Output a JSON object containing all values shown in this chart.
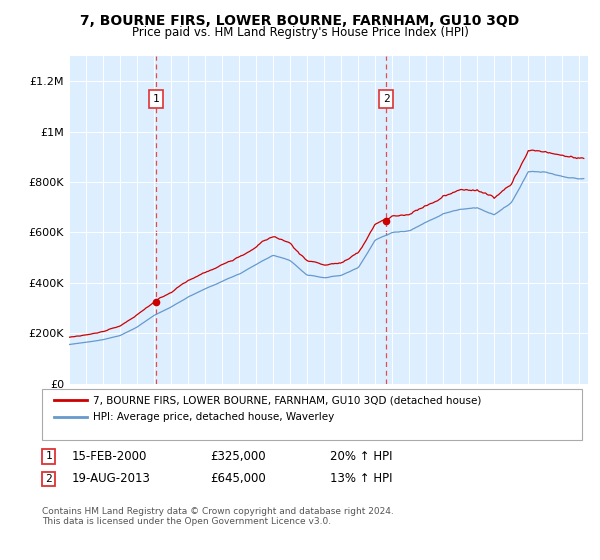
{
  "title": "7, BOURNE FIRS, LOWER BOURNE, FARNHAM, GU10 3QD",
  "subtitle": "Price paid vs. HM Land Registry's House Price Index (HPI)",
  "legend_line1": "7, BOURNE FIRS, LOWER BOURNE, FARNHAM, GU10 3QD (detached house)",
  "legend_line2": "HPI: Average price, detached house, Waverley",
  "annotation1_date": "15-FEB-2000",
  "annotation1_price": "£325,000",
  "annotation1_hpi": "20% ↑ HPI",
  "annotation2_date": "19-AUG-2013",
  "annotation2_price": "£645,000",
  "annotation2_hpi": "13% ↑ HPI",
  "footer": "Contains HM Land Registry data © Crown copyright and database right 2024.\nThis data is licensed under the Open Government Licence v3.0.",
  "xmin": 1995,
  "xmax": 2025.5,
  "ymin": 0,
  "ymax": 1300000,
  "yticks": [
    0,
    200000,
    400000,
    600000,
    800000,
    1000000,
    1200000
  ],
  "ytick_labels": [
    "£0",
    "£200K",
    "£400K",
    "£600K",
    "£800K",
    "£1M",
    "£1.2M"
  ],
  "xticks": [
    1995,
    1996,
    1997,
    1998,
    1999,
    2000,
    2001,
    2002,
    2003,
    2004,
    2005,
    2006,
    2007,
    2008,
    2009,
    2010,
    2011,
    2012,
    2013,
    2014,
    2015,
    2016,
    2017,
    2018,
    2019,
    2020,
    2021,
    2022,
    2023,
    2024,
    2025
  ],
  "red_color": "#cc0000",
  "blue_color": "#6699cc",
  "bg_color": "#ddeeff",
  "plot_bg": "#ffffff",
  "vline_color": "#dd3333",
  "sale1_x": 2000.12,
  "sale1_y": 325000,
  "sale2_x": 2013.63,
  "sale2_y": 645000,
  "title_fontsize": 10,
  "subtitle_fontsize": 8.5
}
